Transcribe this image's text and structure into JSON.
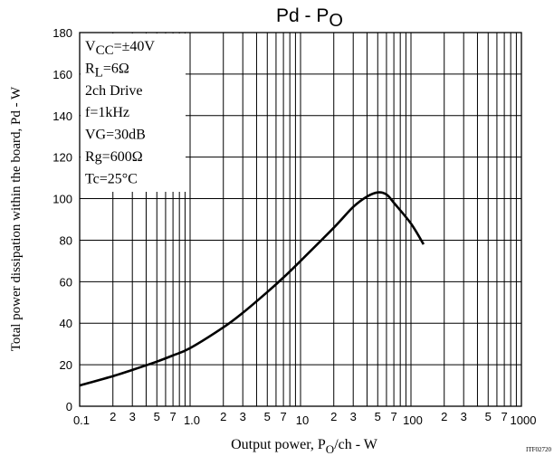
{
  "chart_data": {
    "type": "line",
    "title_main": "Pd - P",
    "title_sub": "O",
    "xlabel_pre": "Output power, P",
    "xlabel_sub": "O",
    "xlabel_post": "/ch - W",
    "ylabel": "Total power dissipation within the board, Pd - W",
    "x_scale": "log",
    "xlim": [
      0.1,
      1000
    ],
    "ylim": [
      0,
      180
    ],
    "grid": true,
    "x_decade_labels": [
      "0.1",
      "1.0",
      "10",
      "100",
      "1000"
    ],
    "x_minor_labels": [
      "2",
      "3",
      "5",
      "7"
    ],
    "y_ticks": [
      "0",
      "20",
      "40",
      "60",
      "80",
      "100",
      "120",
      "140",
      "160",
      "180"
    ],
    "conditions": [
      {
        "pre": "V",
        "sub": "CC",
        "post": "=±40V"
      },
      {
        "pre": "R",
        "sub": "L",
        "post": "=6Ω"
      },
      {
        "pre": "2ch Drive",
        "sub": "",
        "post": ""
      },
      {
        "pre": "f=1kHz",
        "sub": "",
        "post": ""
      },
      {
        "pre": "VG=30dB",
        "sub": "",
        "post": ""
      },
      {
        "pre": "Rg=600Ω",
        "sub": "",
        "post": ""
      },
      {
        "pre": "Tc=25°C",
        "sub": "",
        "post": ""
      }
    ],
    "code_label": "ITF02720",
    "series": [
      {
        "x": [
          0.1,
          0.2,
          0.3,
          0.5,
          0.7,
          1.0,
          2.0,
          3.0,
          5.0,
          7.0,
          10,
          20,
          30,
          40,
          50,
          60,
          70,
          100,
          130
        ],
        "y": [
          10,
          14.5,
          17.5,
          21.5,
          24.5,
          28,
          38,
          45,
          55,
          62,
          70,
          86,
          96,
          101,
          103,
          102,
          98,
          88,
          78
        ]
      }
    ]
  }
}
